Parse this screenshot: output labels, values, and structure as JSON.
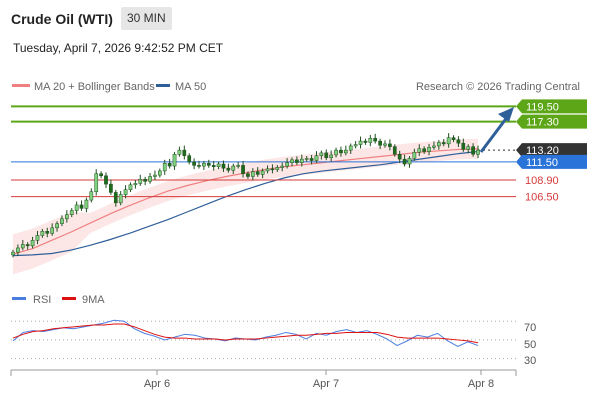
{
  "header": {
    "title": "Crude Oil (WTI)",
    "interval": "30 MIN",
    "timestamp": "Tuesday, April 7, 2026 9:42:52 PM CET"
  },
  "legend": {
    "ma20": "MA 20 + Bollinger Bands",
    "ma50": "MA 50",
    "credit": "Research © 2026 Trading Central"
  },
  "colors": {
    "up_level": "#5ca617",
    "current": "#333333",
    "pivot": "#2a73d9",
    "down_level": "#d63a3a",
    "ma20": "#f08080",
    "ma50": "#2f5f99",
    "rsi": "#4a7de0",
    "rsi_ma": "#dd1111",
    "arrow": "#2f5f99"
  },
  "levels": [
    {
      "label": "119.50",
      "kind": "resistance"
    },
    {
      "label": "117.30",
      "kind": "resistance"
    },
    {
      "label": "113.20",
      "kind": "current"
    },
    {
      "label": "111.50",
      "kind": "pivot"
    },
    {
      "label": "108.90",
      "kind": "support"
    },
    {
      "label": "106.50",
      "kind": "support"
    }
  ],
  "rsi_panel": {
    "legend_rsi": "RSI",
    "legend_ma": "9MA",
    "ticks": [
      "70",
      "50",
      "30"
    ]
  },
  "x_axis": {
    "labels": [
      "Apr 6",
      "Apr 7",
      "Apr 8"
    ]
  },
  "chart_data": {
    "type": "candlestick",
    "price_range": [
      96.5,
      121.0
    ],
    "closes": [
      98.5,
      99.1,
      99.6,
      99.4,
      100.2,
      100.9,
      101.5,
      101.2,
      102.0,
      102.6,
      103.3,
      103.9,
      104.5,
      105.3,
      104.8,
      106.0,
      107.2,
      109.8,
      109.5,
      108.3,
      107.1,
      105.6,
      106.8,
      107.5,
      108.2,
      108.4,
      109.0,
      108.7,
      109.4,
      109.6,
      110.2,
      111.3,
      110.9,
      112.6,
      113.2,
      112.4,
      111.5,
      111.0,
      110.9,
      111.3,
      111.0,
      110.8,
      111.2,
      110.6,
      110.3,
      110.9,
      111.0,
      109.8,
      109.4,
      110.1,
      109.7,
      110.2,
      110.5,
      110.4,
      110.7,
      110.9,
      111.4,
      111.8,
      111.4,
      111.9,
      112.0,
      111.7,
      112.4,
      112.8,
      112.1,
      112.5,
      113.2,
      112.8,
      113.2,
      113.8,
      114.0,
      114.5,
      114.3,
      114.9,
      114.5,
      113.9,
      114.1,
      113.7,
      112.6,
      111.9,
      111.2,
      112.0,
      112.9,
      113.4,
      113.0,
      113.6,
      113.8,
      114.3,
      114.1,
      115.0,
      114.7,
      114.2,
      113.3,
      113.7,
      112.6,
      113.2
    ],
    "ma20": [
      98.2,
      99.0,
      100.2,
      101.4,
      102.7,
      104.0,
      105.2,
      106.3,
      107.3,
      108.1,
      108.8,
      109.4,
      109.9,
      110.4,
      110.8,
      111.1,
      111.4,
      111.7,
      112.0,
      112.3,
      112.6,
      112.9,
      113.1,
      113.3,
      113.4
    ],
    "ma50": [
      98.0,
      98.1,
      98.3,
      98.8,
      99.5,
      100.3,
      101.2,
      102.2,
      103.2,
      104.3,
      105.4,
      106.5,
      107.5,
      108.4,
      109.2,
      109.8,
      110.2,
      110.5,
      110.8,
      111.1,
      111.5,
      111.9,
      112.3,
      112.7,
      113.0
    ],
    "rsi": [
      49,
      58,
      60,
      59,
      61,
      63,
      62,
      64,
      66,
      68,
      71,
      70,
      62,
      57,
      54,
      50,
      53,
      56,
      55,
      52,
      51,
      49,
      52,
      51,
      50,
      53,
      55,
      58,
      56,
      51,
      57,
      55,
      59,
      61,
      58,
      60,
      56,
      51,
      44,
      49,
      55,
      53,
      57,
      49,
      43,
      48,
      44
    ],
    "rsi_ma": [
      52,
      56,
      59,
      60,
      62,
      63,
      64,
      65,
      66,
      66,
      67,
      67,
      64,
      60,
      56,
      53,
      52,
      52,
      51,
      51,
      51,
      50,
      51,
      51,
      51,
      52,
      53,
      54,
      55,
      55,
      56,
      57,
      57,
      58,
      58,
      58,
      58,
      56,
      53,
      52,
      52,
      52,
      52,
      51,
      50,
      49,
      47
    ],
    "rsi_range": [
      20,
      82
    ]
  }
}
